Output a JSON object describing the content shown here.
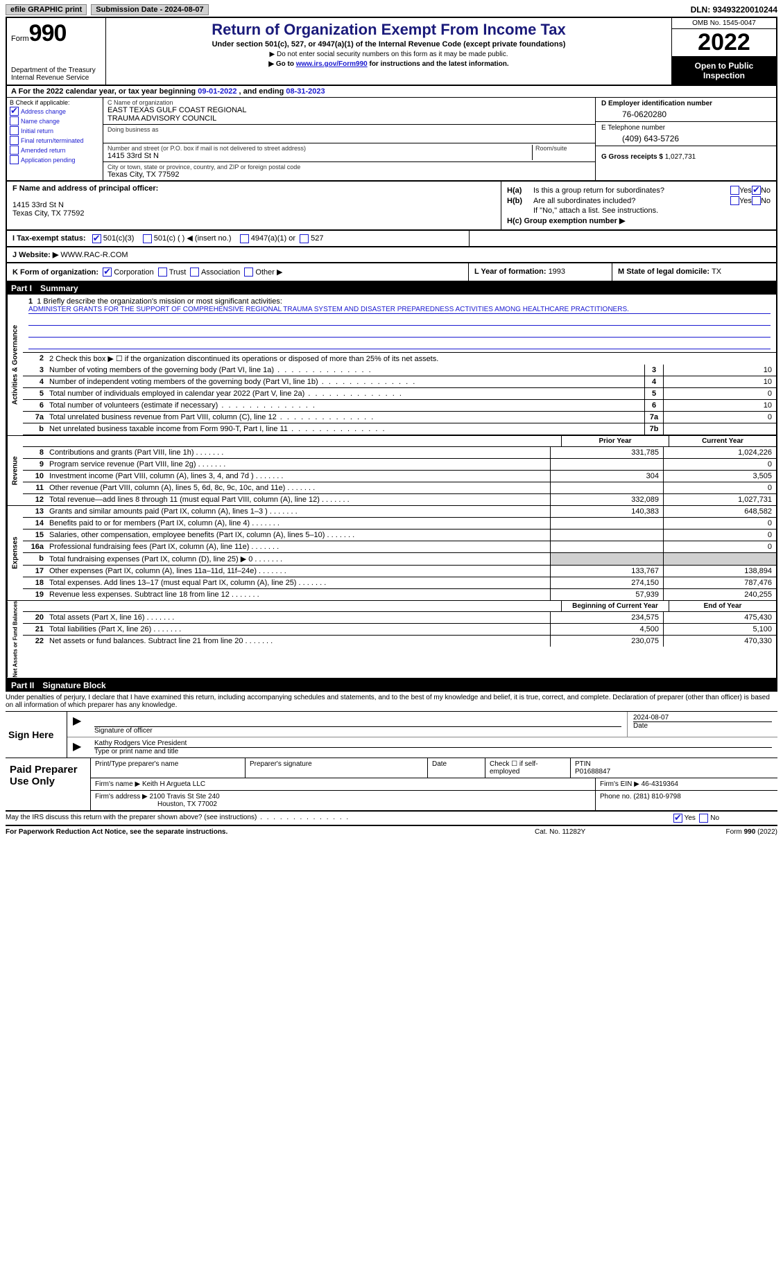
{
  "topbar": {
    "efile": "efile GRAPHIC print",
    "submission_label": "Submission Date - ",
    "submission_date": "2024-08-07",
    "dln_label": "DLN: ",
    "dln": "93493220010244"
  },
  "header": {
    "form_word": "Form",
    "form_num": "990",
    "dept": "Department of the Treasury\nInternal Revenue Service",
    "title": "Return of Organization Exempt From Income Tax",
    "subtitle": "Under section 501(c), 527, or 4947(a)(1) of the Internal Revenue Code (except private foundations)",
    "note1": "▶ Do not enter social security numbers on this form as it may be made public.",
    "note2_pre": "▶ Go to ",
    "note2_link": "www.irs.gov/Form990",
    "note2_post": " for instructions and the latest information.",
    "omb": "OMB No. 1545-0047",
    "year": "2022",
    "open": "Open to Public Inspection"
  },
  "row_a": {
    "pre": "A For the 2022 calendar year, or tax year beginning ",
    "begin": "09-01-2022",
    "mid": "   , and ending ",
    "end": "08-31-2023"
  },
  "col_b": {
    "title": "B Check if applicable:",
    "items": [
      {
        "label": "Address change",
        "checked": true
      },
      {
        "label": "Name change",
        "checked": false
      },
      {
        "label": "Initial return",
        "checked": false
      },
      {
        "label": "Final return/terminated",
        "checked": false
      },
      {
        "label": "Amended return",
        "checked": false
      },
      {
        "label": "Application pending",
        "checked": false
      }
    ]
  },
  "col_c": {
    "name_label": "C Name of organization",
    "name": "EAST TEXAS GULF COAST REGIONAL\nTRAUMA ADVISORY COUNCIL",
    "dba_label": "Doing business as",
    "dba": "",
    "addr_label": "Number and street (or P.O. box if mail is not delivered to street address)",
    "room_label": "Room/suite",
    "addr": "1415 33rd St N",
    "city_label": "City or town, state or province, country, and ZIP or foreign postal code",
    "city": "Texas City, TX  77592"
  },
  "col_d": {
    "ein_label": "D Employer identification number",
    "ein": "76-0620280",
    "phone_label": "E Telephone number",
    "phone": "(409) 643-5726",
    "gross_label": "G Gross receipts $ ",
    "gross": "1,027,731"
  },
  "row_f": {
    "label": "F  Name and address of principal officer:",
    "addr1": "1415 33rd St N",
    "addr2": "Texas City, TX  77592"
  },
  "row_h": {
    "ha": "H(a)  Is this a group return for subordinates?",
    "hb": "H(b)  Are all subordinates included?",
    "hb_note": "If \"No,\" attach a list. See instructions.",
    "hc": "H(c)  Group exemption number ▶"
  },
  "row_i": {
    "label": "I   Tax-exempt status:",
    "opts": [
      "501(c)(3)",
      "501(c) (  ) ◀ (insert no.)",
      "4947(a)(1) or",
      "527"
    ]
  },
  "row_j": {
    "label": "J   Website: ▶  ",
    "val": "WWW.RAC-R.COM"
  },
  "row_k": {
    "label": "K Form of organization:",
    "opts": [
      "Corporation",
      "Trust",
      "Association",
      "Other ▶"
    ]
  },
  "row_l": {
    "label": "L Year of formation: ",
    "val": "1993"
  },
  "row_m": {
    "label": "M State of legal domicile: ",
    "val": "TX"
  },
  "part1": {
    "title": "Part I",
    "heading": "Summary",
    "line1_label": "1   Briefly describe the organization's mission or most significant activities:",
    "line1_text": "ADMINISTER GRANTS FOR THE SUPPORT OF COMPREHENSIVE REGIONAL TRAUMA SYSTEM AND DISASTER PREPAREDNESS ACTIVITIES AMONG HEALTHCARE PRACTITIONERS.",
    "line2": "2   Check this box ▶ ☐ if the organization discontinued its operations or disposed of more than 25% of its net assets.",
    "vtab_gov": "Activities & Governance",
    "vtab_rev": "Revenue",
    "vtab_exp": "Expenses",
    "vtab_net": "Net Assets or Fund Balances",
    "rows_gov": [
      {
        "n": "3",
        "label": "Number of voting members of the governing body (Part VI, line 1a)",
        "box": "3",
        "val": "10"
      },
      {
        "n": "4",
        "label": "Number of independent voting members of the governing body (Part VI, line 1b)",
        "box": "4",
        "val": "10"
      },
      {
        "n": "5",
        "label": "Total number of individuals employed in calendar year 2022 (Part V, line 2a)",
        "box": "5",
        "val": "0"
      },
      {
        "n": "6",
        "label": "Total number of volunteers (estimate if necessary)",
        "box": "6",
        "val": "10"
      },
      {
        "n": "7a",
        "label": "Total unrelated business revenue from Part VIII, column (C), line 12",
        "box": "7a",
        "val": "0"
      },
      {
        "n": "b",
        "label": "Net unrelated business taxable income from Form 990-T, Part I, line 11",
        "box": "7b",
        "val": ""
      }
    ],
    "prior_hdr": "Prior Year",
    "current_hdr": "Current Year",
    "rows_rev": [
      {
        "n": "8",
        "label": "Contributions and grants (Part VIII, line 1h)",
        "prior": "331,785",
        "curr": "1,024,226"
      },
      {
        "n": "9",
        "label": "Program service revenue (Part VIII, line 2g)",
        "prior": "",
        "curr": "0"
      },
      {
        "n": "10",
        "label": "Investment income (Part VIII, column (A), lines 3, 4, and 7d )",
        "prior": "304",
        "curr": "3,505"
      },
      {
        "n": "11",
        "label": "Other revenue (Part VIII, column (A), lines 5, 6d, 8c, 9c, 10c, and 11e)",
        "prior": "",
        "curr": "0"
      },
      {
        "n": "12",
        "label": "Total revenue—add lines 8 through 11 (must equal Part VIII, column (A), line 12)",
        "prior": "332,089",
        "curr": "1,027,731"
      }
    ],
    "rows_exp": [
      {
        "n": "13",
        "label": "Grants and similar amounts paid (Part IX, column (A), lines 1–3 )",
        "prior": "140,383",
        "curr": "648,582"
      },
      {
        "n": "14",
        "label": "Benefits paid to or for members (Part IX, column (A), line 4)",
        "prior": "",
        "curr": "0"
      },
      {
        "n": "15",
        "label": "Salaries, other compensation, employee benefits (Part IX, column (A), lines 5–10)",
        "prior": "",
        "curr": "0"
      },
      {
        "n": "16a",
        "label": "Professional fundraising fees (Part IX, column (A), line 11e)",
        "prior": "",
        "curr": "0"
      },
      {
        "n": "b",
        "label": "Total fundraising expenses (Part IX, column (D), line 25) ▶ 0",
        "prior": "GRAY",
        "curr": "GRAY"
      },
      {
        "n": "17",
        "label": "Other expenses (Part IX, column (A), lines 11a–11d, 11f–24e)",
        "prior": "133,767",
        "curr": "138,894"
      },
      {
        "n": "18",
        "label": "Total expenses. Add lines 13–17 (must equal Part IX, column (A), line 25)",
        "prior": "274,150",
        "curr": "787,476"
      },
      {
        "n": "19",
        "label": "Revenue less expenses. Subtract line 18 from line 12",
        "prior": "57,939",
        "curr": "240,255"
      }
    ],
    "begin_hdr": "Beginning of Current Year",
    "end_hdr": "End of Year",
    "rows_net": [
      {
        "n": "20",
        "label": "Total assets (Part X, line 16)",
        "prior": "234,575",
        "curr": "475,430"
      },
      {
        "n": "21",
        "label": "Total liabilities (Part X, line 26)",
        "prior": "4,500",
        "curr": "5,100"
      },
      {
        "n": "22",
        "label": "Net assets or fund balances. Subtract line 21 from line 20",
        "prior": "230,075",
        "curr": "470,330"
      }
    ]
  },
  "part2": {
    "title": "Part II",
    "heading": "Signature Block",
    "intro": "Under penalties of perjury, I declare that I have examined this return, including accompanying schedules and statements, and to the best of my knowledge and belief, it is true, correct, and complete. Declaration of preparer (other than officer) is based on all information of which preparer has any knowledge.",
    "sign_here": "Sign Here",
    "sig_officer": "Signature of officer",
    "sig_date": "2024-08-07",
    "date_label": "Date",
    "name_title": "Kathy Rodgers  Vice President",
    "name_label": "Type or print name and title",
    "paid": "Paid Preparer Use Only",
    "prep_name_label": "Print/Type preparer's name",
    "prep_sig_label": "Preparer's signature",
    "prep_date_label": "Date",
    "prep_self": "Check ☐ if self-employed",
    "ptin_label": "PTIN",
    "ptin": "P01688847",
    "firm_name_label": "Firm's name      ▶ ",
    "firm_name": "Keith H Argueta LLC",
    "firm_ein_label": "Firm's EIN ▶ ",
    "firm_ein": "46-4319364",
    "firm_addr_label": "Firm's address ▶ ",
    "firm_addr1": "2100 Travis St Ste 240",
    "firm_addr2": "Houston, TX  77002",
    "firm_phone_label": "Phone no. ",
    "firm_phone": "(281) 810-9798",
    "discuss": "May the IRS discuss this return with the preparer shown above? (see instructions)",
    "paperwork": "For Paperwork Reduction Act Notice, see the separate instructions.",
    "cat": "Cat. No. 11282Y",
    "form_foot": "Form 990 (2022)"
  }
}
